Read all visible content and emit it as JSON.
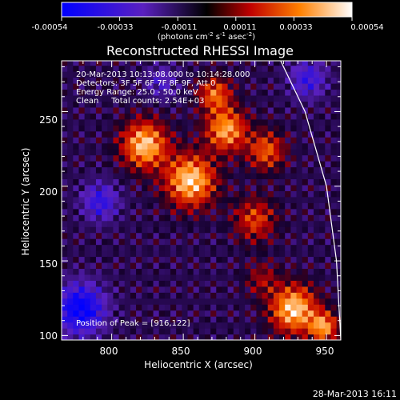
{
  "chart_data": {
    "type": "heatmap",
    "title": "Reconstructed RHESSI Image",
    "xlabel": "Heliocentric X (arcsec)",
    "ylabel": "Heliocentric Y (arcsec)",
    "xlim": [
      765,
      960
    ],
    "ylim": [
      97,
      284
    ],
    "x_ticks": [
      "800",
      "850",
      "900",
      "950"
    ],
    "y_ticks": [
      "100",
      "150",
      "200",
      "250"
    ],
    "colorbar": {
      "ticks": [
        "-0.00054",
        "-0.00033",
        "-0.00011",
        "0.00011",
        "0.00033",
        "0.00054"
      ],
      "range": [
        -0.00054,
        0.00054
      ],
      "label_prefix": "(photons cm",
      "label_exp1": "-2",
      "label_mid": " s",
      "label_exp2": "-1",
      "label_mid2": " asec",
      "label_exp3": "-2",
      "label_suffix": ")"
    },
    "info_lines": [
      "20-Mar-2013 10:13:08.000 to 10:14:28.000",
      "Detectors: 3F 5F 6F 7F 8F 9F, Att 0",
      "Energy Range: 25.0 - 50.0 keV",
      "Clean     Total counts: 2.54E+03"
    ],
    "peak_label": "Position of Peak = [916,122]",
    "sources": [
      {
        "x": 823,
        "y": 228,
        "sigma": 11,
        "value": 0.00052
      },
      {
        "x": 855,
        "y": 204,
        "sigma": 12,
        "value": 0.00054
      },
      {
        "x": 880,
        "y": 238,
        "sigma": 10,
        "value": 0.00046
      },
      {
        "x": 872,
        "y": 262,
        "sigma": 8,
        "value": 0.00036
      },
      {
        "x": 908,
        "y": 224,
        "sigma": 9,
        "value": 0.00034
      },
      {
        "x": 900,
        "y": 178,
        "sigma": 10,
        "value": 0.0003
      },
      {
        "x": 927,
        "y": 118,
        "sigma": 11,
        "value": 0.00054
      },
      {
        "x": 948,
        "y": 106,
        "sigma": 7,
        "value": 0.00044
      },
      {
        "x": 905,
        "y": 138,
        "sigma": 8,
        "value": 0.00018
      },
      {
        "x": 778,
        "y": 118,
        "sigma": 12,
        "value": -0.0005
      },
      {
        "x": 937,
        "y": 272,
        "sigma": 9,
        "value": -0.0003
      },
      {
        "x": 792,
        "y": 190,
        "sigma": 9,
        "value": -0.00032
      },
      {
        "x": 835,
        "y": 270,
        "sigma": 8,
        "value": -0.0002
      }
    ],
    "limb": [
      [
        918,
        284
      ],
      [
        935,
        250
      ],
      [
        950,
        200
      ],
      [
        957,
        150
      ],
      [
        960,
        97
      ]
    ]
  },
  "footer": {
    "timestamp": "28-Mar-2013 16:11"
  }
}
